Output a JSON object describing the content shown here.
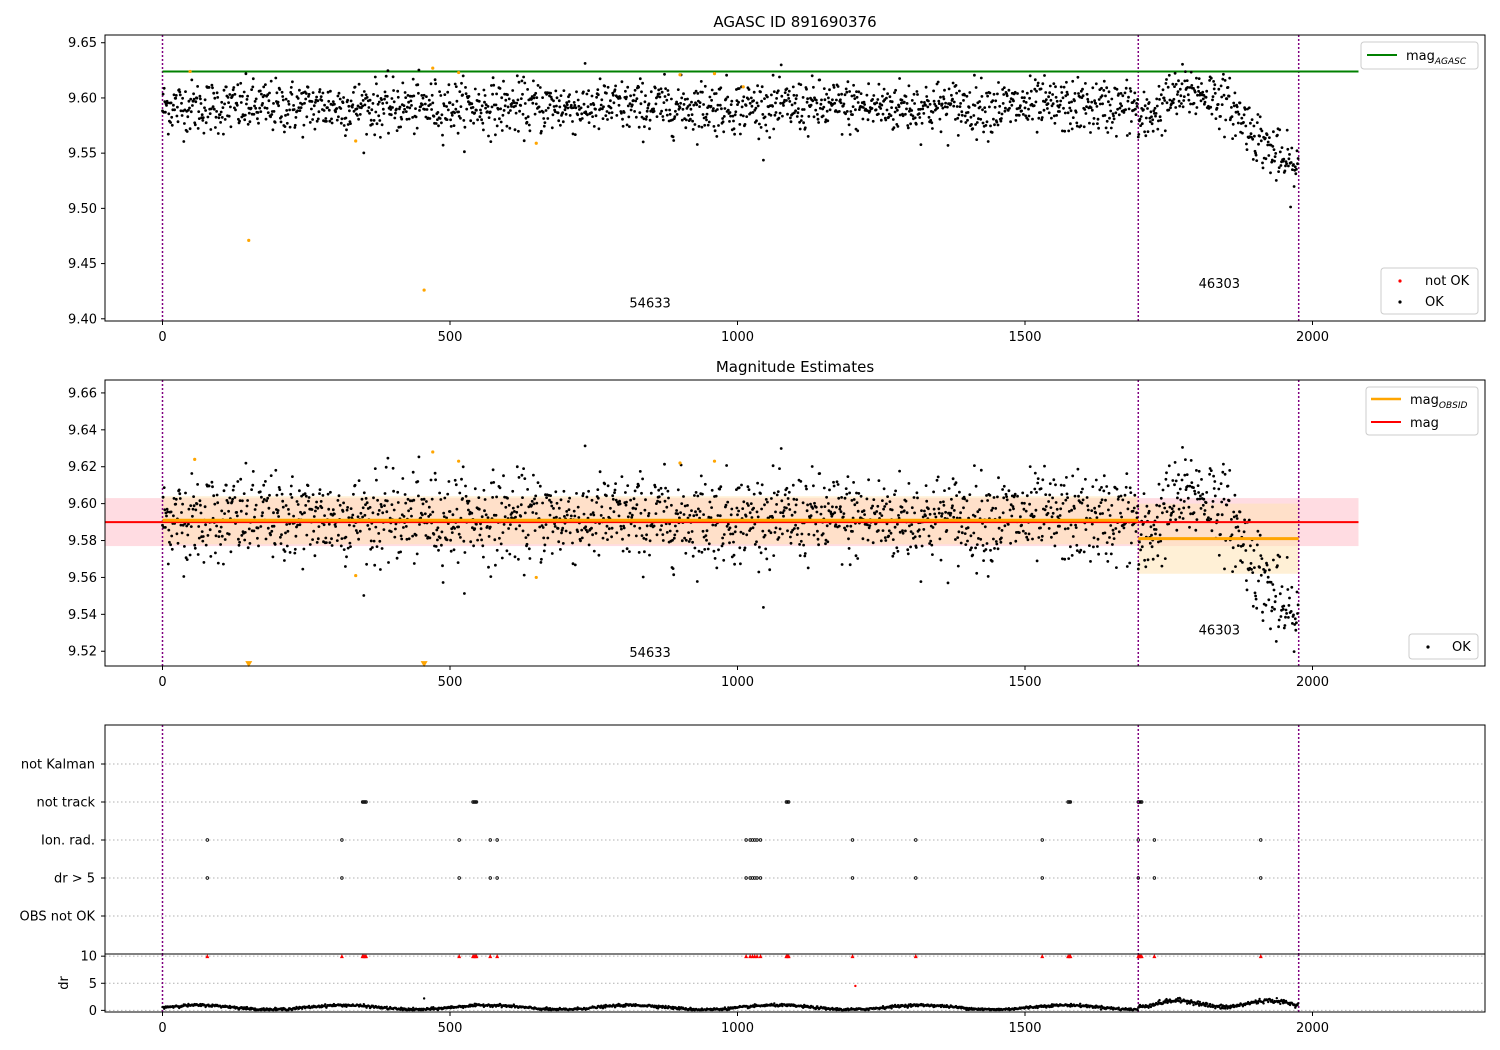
{
  "colors": {
    "agasc_line": "#008000",
    "mag_line": "#ff0000",
    "obsid_line": "#ffa500",
    "ok_point": "#000000",
    "not_ok_point": "#ffa500",
    "flag_marker": "#ff0000",
    "obs_boundary": "#800080",
    "band_mag": "#ffc0cb",
    "band_obsid": "#ffe4b5",
    "grid": "#b0b0b0"
  },
  "chart_data": [
    {
      "type": "scatter",
      "title": "AGASC ID 891690376",
      "xlim": [
        -100,
        2300
      ],
      "ylim": [
        9.398,
        9.657
      ],
      "x_ticks": [
        0,
        500,
        1000,
        1500,
        2000
      ],
      "y_ticks": [
        9.4,
        9.45,
        9.5,
        9.55,
        9.6,
        9.65
      ],
      "y_tick_labels": [
        "9.40",
        "9.45",
        "9.50",
        "9.55",
        "9.60",
        "9.65"
      ],
      "lines": [
        {
          "name": "mag_AGASC",
          "legend": "mag",
          "legend_sub": "AGASC",
          "x": [
            0,
            2080
          ],
          "y": [
            9.624,
            9.624
          ],
          "color": "#008000"
        }
      ],
      "obs_boundaries": [
        0,
        1697,
        1976
      ],
      "obsid_labels": [
        {
          "text": "54633",
          "x": 848,
          "y": 9.41
        },
        {
          "text": "46303",
          "x": 1838,
          "y": 9.428
        }
      ],
      "segments": [
        {
          "x0": 0,
          "x1": 1697,
          "mean": 9.592,
          "spread": 0.012
        },
        {
          "x0": 1697,
          "x1": 1976,
          "mean": 9.582,
          "spread": 0.022
        }
      ],
      "not_ok_points": {
        "x": [
          150,
          336,
          455,
          470,
          515,
          650,
          900,
          960,
          48,
          1010
        ],
        "y": [
          9.471,
          9.561,
          9.426,
          9.627,
          9.623,
          9.559,
          9.621,
          9.622,
          9.624,
          9.61
        ]
      },
      "legend": [
        {
          "label": "mag",
          "sub": "AGASC",
          "kind": "line",
          "color": "#008000",
          "position": "top-right"
        },
        {
          "label": "not OK",
          "kind": "point",
          "color": "#ff0000",
          "position": "bottom-right"
        },
        {
          "label": "OK",
          "kind": "point",
          "color": "#000000",
          "position": "bottom-right"
        }
      ]
    },
    {
      "type": "scatter",
      "title": "Magnitude Estimates",
      "xlim": [
        -100,
        2300
      ],
      "ylim": [
        9.512,
        9.667
      ],
      "x_ticks": [
        0,
        500,
        1000,
        1500,
        2000
      ],
      "y_ticks": [
        9.52,
        9.54,
        9.56,
        9.58,
        9.6,
        9.62,
        9.64,
        9.66
      ],
      "y_tick_labels": [
        "9.52",
        "9.54",
        "9.56",
        "9.58",
        "9.60",
        "9.62",
        "9.64",
        "9.66"
      ],
      "lines": [
        {
          "name": "mag",
          "legend": "mag",
          "x": [
            -100,
            2080
          ],
          "y": [
            9.59,
            9.59
          ],
          "color": "#ff0000",
          "band": [
            9.577,
            9.603
          ]
        },
        {
          "name": "mag_OBSID_1",
          "legend": "mag",
          "legend_sub": "OBSID",
          "x": [
            0,
            1697
          ],
          "y": [
            9.591,
            9.591
          ],
          "color": "#ffa500",
          "band": [
            9.578,
            9.604
          ]
        },
        {
          "name": "mag_OBSID_2",
          "x": [
            1697,
            1976
          ],
          "y": [
            9.581,
            9.581
          ],
          "color": "#ffa500",
          "band": [
            9.562,
            9.6
          ]
        }
      ],
      "obs_boundaries": [
        0,
        1697,
        1976
      ],
      "obsid_labels": [
        {
          "text": "54633",
          "x": 848,
          "y": 9.517
        },
        {
          "text": "46303",
          "x": 1838,
          "y": 9.529
        }
      ],
      "not_ok_points": {
        "x": [
          56,
          336,
          470,
          515,
          650,
          900,
          960
        ],
        "y": [
          9.624,
          9.561,
          9.628,
          9.623,
          9.56,
          9.622,
          9.623
        ]
      },
      "not_ok_triangles": {
        "x": [
          150,
          455
        ],
        "y": [
          9.513,
          9.513
        ]
      },
      "legend": [
        {
          "label": "mag",
          "sub": "OBSID",
          "kind": "line",
          "color": "#ffa500",
          "position": "top-right"
        },
        {
          "label": "mag",
          "kind": "line",
          "color": "#ff0000",
          "position": "top-right"
        },
        {
          "label": "OK",
          "kind": "point",
          "color": "#000000",
          "position": "bottom-right"
        }
      ]
    },
    {
      "type": "scatter",
      "title": "",
      "xlim": [
        -100,
        2300
      ],
      "categories": [
        "OBS not OK",
        "dr > 5",
        "Ion. rad.",
        "not track",
        "not Kalman"
      ],
      "flags": {
        "OBS not OK": [],
        "dr > 5": [
          78,
          312,
          516,
          570,
          582,
          1015,
          1022,
          1026,
          1030,
          1034,
          1040,
          1200,
          1310,
          1530,
          1697,
          1725,
          1910
        ],
        "Ion. rad.": [
          78,
          312,
          516,
          570,
          582,
          1015,
          1022,
          1026,
          1030,
          1034,
          1040,
          1200,
          1310,
          1530,
          1697,
          1725,
          1910
        ],
        "not track": [
          348,
          350,
          352,
          354,
          540,
          542,
          544,
          546,
          1085,
          1087,
          1089,
          1575,
          1577,
          1579,
          1697,
          1699,
          1701,
          1703
        ],
        "not Kalman": []
      },
      "obs_boundaries": [
        0,
        1697,
        1976
      ]
    },
    {
      "type": "scatter",
      "title": "",
      "xlim": [
        -100,
        2300
      ],
      "ylim": [
        -0.3,
        10.4
      ],
      "x_ticks": [
        0,
        500,
        1000,
        1500,
        2000
      ],
      "y_ticks": [
        0,
        5,
        10
      ],
      "y_tick_labels": [
        "0",
        "5",
        "10"
      ],
      "ylabel": "dr",
      "clipped_markers_x": [
        78,
        312,
        348,
        350,
        352,
        354,
        516,
        540,
        542,
        544,
        546,
        570,
        582,
        1015,
        1022,
        1026,
        1030,
        1034,
        1040,
        1085,
        1087,
        1089,
        1200,
        1310,
        1530,
        1575,
        1577,
        1579,
        1697,
        1699,
        1701,
        1703,
        1725,
        1910
      ],
      "outliers": {
        "x": [
          455,
          1205
        ],
        "y": [
          2.2,
          4.5
        ]
      },
      "obs_boundaries": [
        0,
        1697,
        1976
      ]
    }
  ]
}
